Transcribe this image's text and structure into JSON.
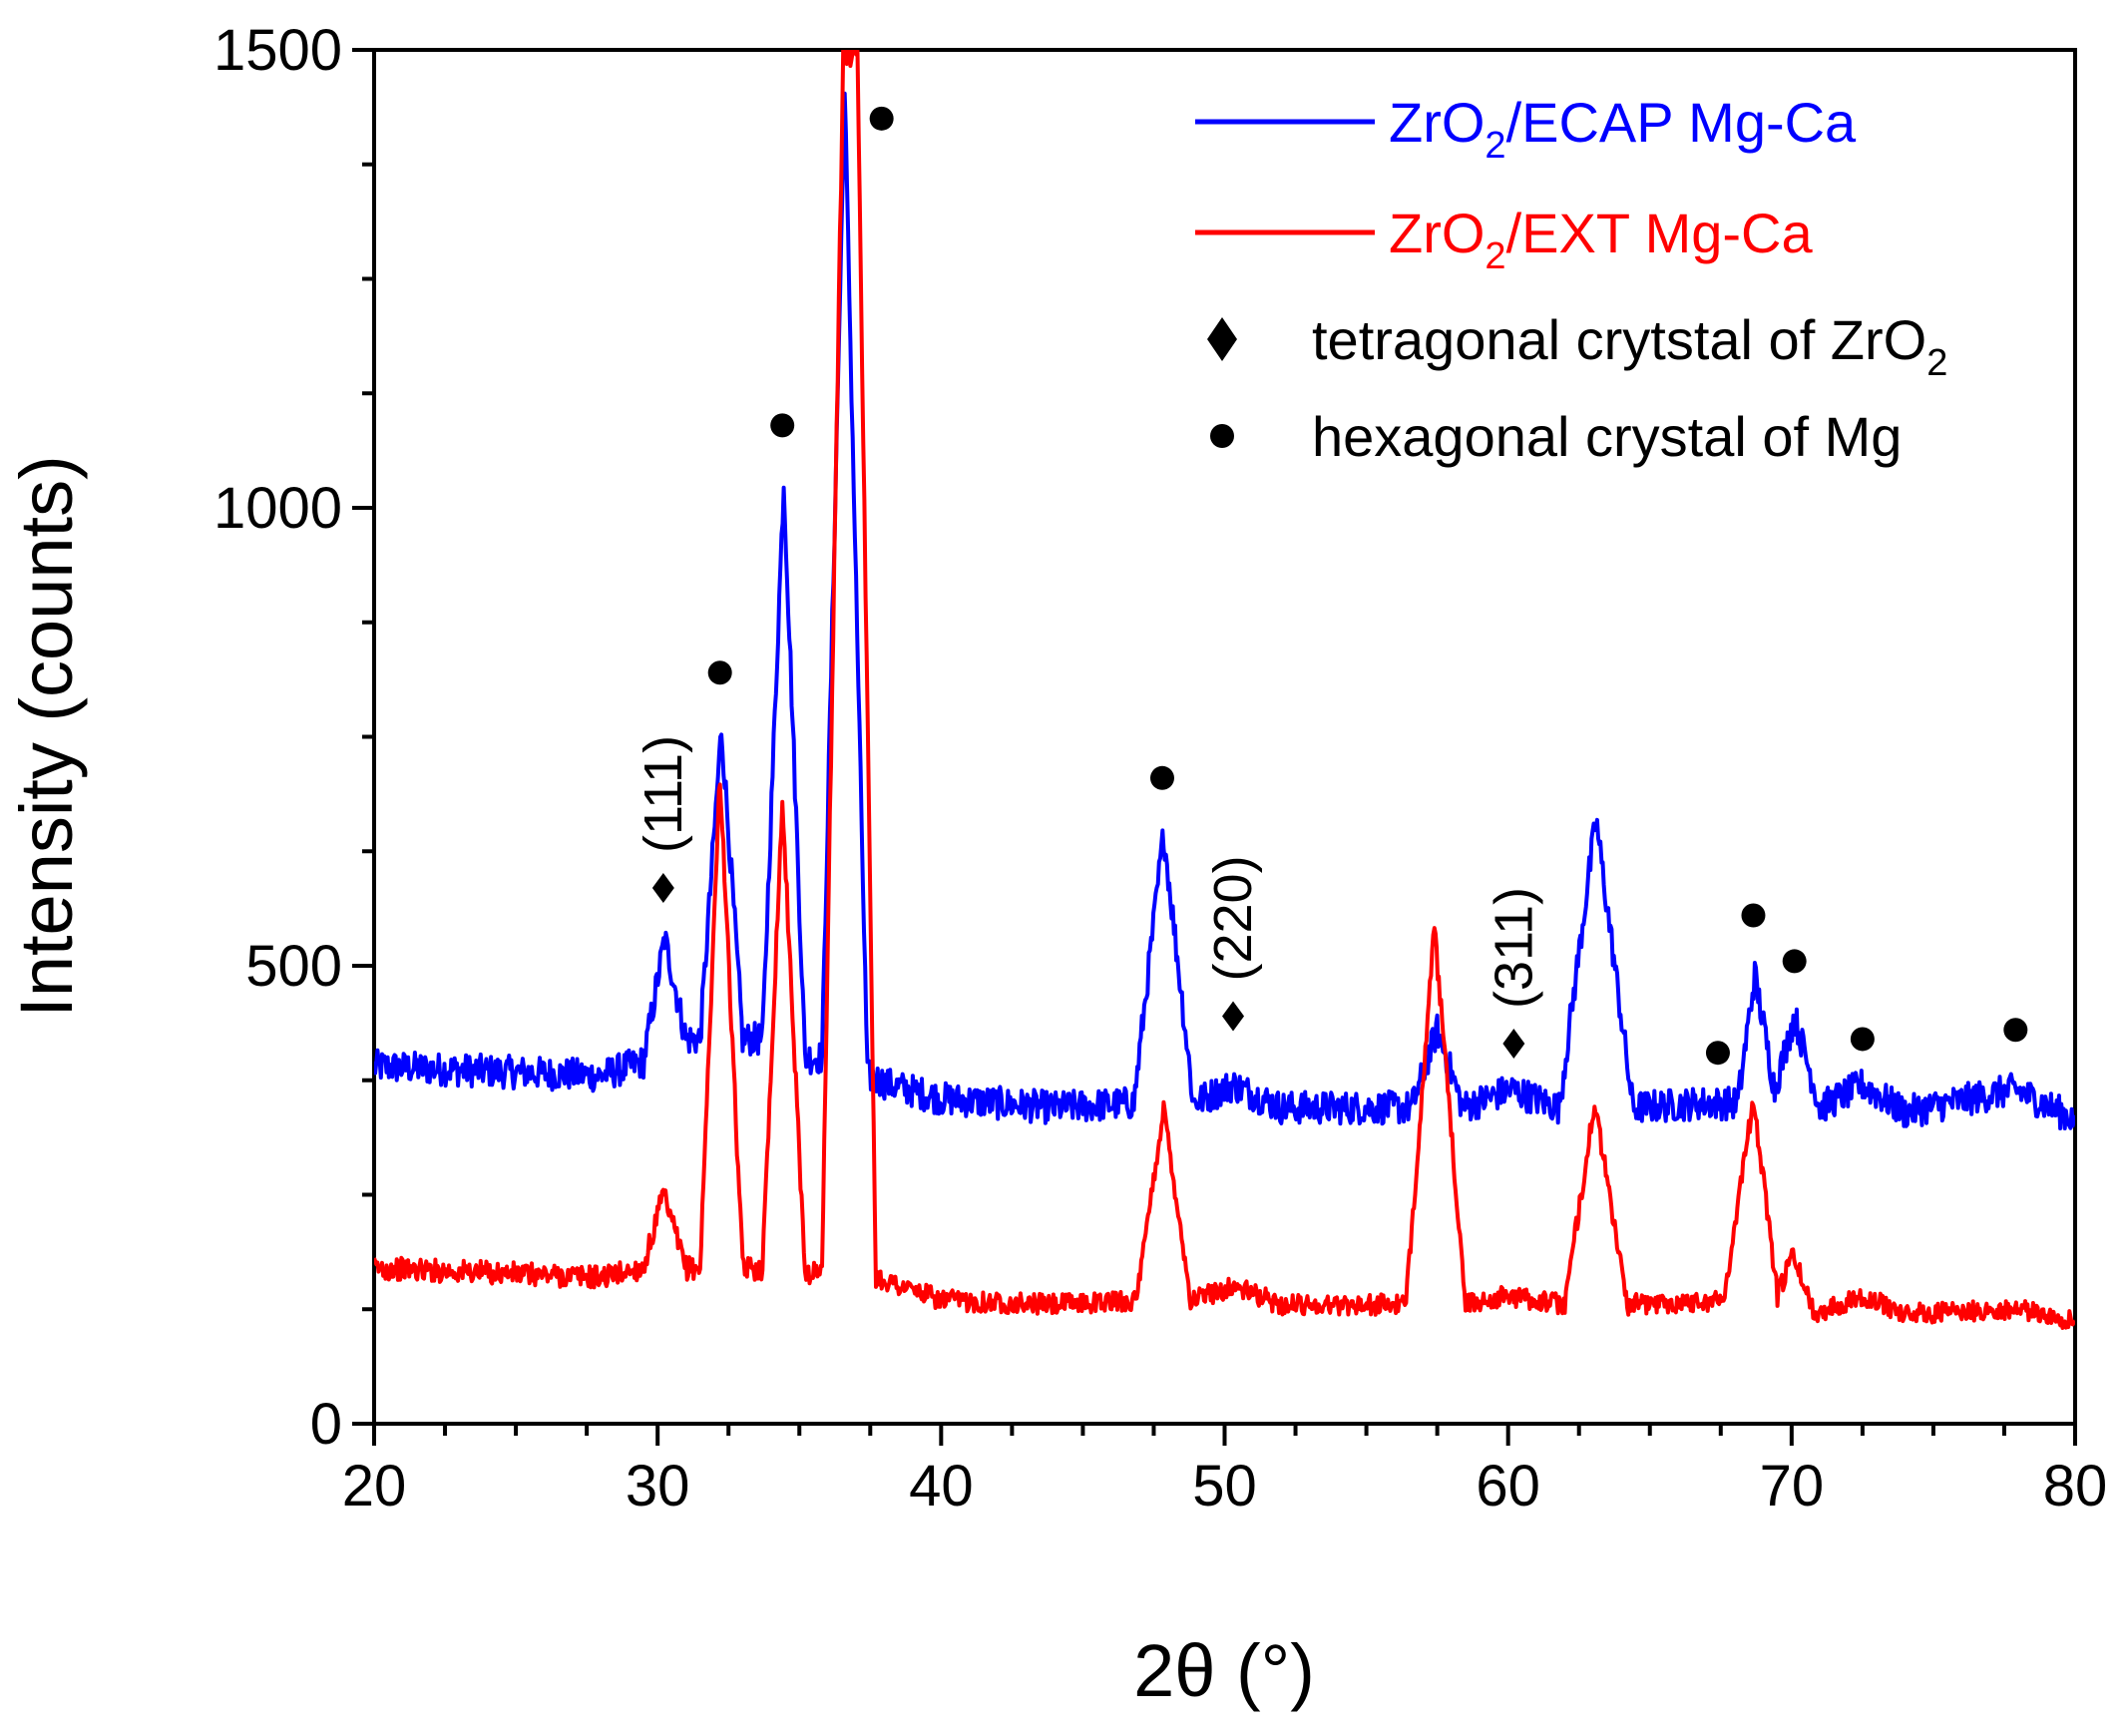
{
  "chart_data": {
    "type": "line",
    "title": "",
    "xlabel": "2θ (°)",
    "ylabel": "Intensity (counts)",
    "xlim": [
      20,
      80
    ],
    "ylim": [
      0,
      1500
    ],
    "xticks": [
      20,
      30,
      40,
      50,
      60,
      70,
      80
    ],
    "yticks": [
      0,
      500,
      1000,
      1500
    ],
    "colors": {
      "ecap": "#0000ff",
      "ext": "#ff0000",
      "marker": "#000000"
    },
    "series": [
      {
        "id": "ecap",
        "name": "ZrO2/ECAP Mg-Ca",
        "name_main": "ZrO",
        "name_sub": "2",
        "name_rest": "/ECAP Mg-Ca",
        "color": "#0000ff",
        "x": [
          20,
          24,
          28,
          29.5,
          30.25,
          31.0,
          31.5,
          32.25,
          33.0,
          33.7,
          34.45,
          35.2,
          35.8,
          36.6,
          37.4,
          38.2,
          40,
          44,
          46.8,
          47.85,
          48.9,
          50.3,
          52,
          56.6,
          57.5,
          58.4,
          60.1,
          61.8,
          63.1,
          64.4,
          66.8,
          68.1,
          68.7,
          69.4,
          70.1,
          71.0,
          72.5,
          74,
          77.9,
          80
        ],
        "y": [
          390,
          385,
          380,
          395,
          530,
          420,
          420,
          760,
          420,
          420,
          1030,
          400,
          400,
          1450,
          380,
          370,
          355,
          345,
          350,
          645,
          350,
          370,
          345,
          345,
          430,
          345,
          365,
          345,
          660,
          345,
          350,
          350,
          490,
          365,
          445,
          345,
          370,
          340,
          365,
          332
        ]
      },
      {
        "id": "ext",
        "name": "ZrO2/EXT Mg-Ca",
        "name_main": "ZrO",
        "name_sub": "2",
        "name_rest": "/EXT Mg-Ca",
        "color": "#ff0000",
        "x": [
          20,
          24,
          28,
          29.5,
          30.2,
          31.0,
          31.5,
          32.2,
          33.0,
          33.7,
          34.4,
          35.2,
          35.8,
          36.55,
          36.8,
          37.05,
          37.7,
          40,
          44,
          46.9,
          47.85,
          48.8,
          50.3,
          52,
          56.4,
          57.4,
          58.5,
          60.0,
          62.0,
          63.05,
          64.2,
          67.6,
          68.65,
          69.5,
          70.05,
          70.8,
          72.5,
          74,
          78,
          80
        ],
        "y": [
          170,
          165,
          160,
          170,
          250,
          170,
          170,
          710,
          170,
          170,
          680,
          165,
          165,
          1500,
          1500,
          1500,
          160,
          135,
          130,
          135,
          345,
          135,
          150,
          130,
          130,
          540,
          130,
          140,
          130,
          350,
          130,
          135,
          355,
          140,
          185,
          120,
          140,
          120,
          125,
          112
        ]
      }
    ],
    "legend": {
      "position": "top-right",
      "markers": [
        {
          "symbol": "diamond",
          "text_main": "tetragonal crytstal of ZrO",
          "text_sub": "2"
        },
        {
          "symbol": "circle",
          "text_main": "hexagonal  crystal of Mg",
          "text_sub": ""
        }
      ]
    },
    "annotations": {
      "hex_circles": [
        {
          "x": 32.2,
          "y": 820
        },
        {
          "x": 34.4,
          "y": 1090
        },
        {
          "x": 37.9,
          "y": 1425
        },
        {
          "x": 47.8,
          "y": 705
        },
        {
          "x": 67.4,
          "y": 405
        },
        {
          "x": 68.65,
          "y": 555
        },
        {
          "x": 70.1,
          "y": 505
        },
        {
          "x": 72.5,
          "y": 420
        },
        {
          "x": 77.9,
          "y": 430
        }
      ],
      "tetra_diamonds": [
        {
          "x": 30.2,
          "y": 585,
          "label": "(111)"
        },
        {
          "x": 50.3,
          "y": 445,
          "label": "(220)"
        },
        {
          "x": 60.2,
          "y": 415,
          "label": "(311)"
        }
      ]
    }
  }
}
